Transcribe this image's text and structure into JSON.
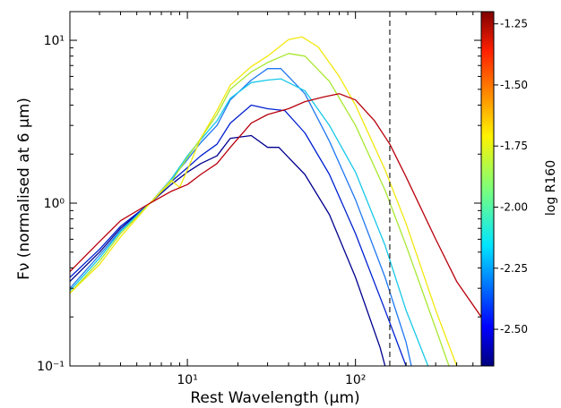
{
  "chart_data": {
    "type": "line",
    "title": "",
    "xlabel": "Rest Wavelength (μm)",
    "ylabel": "Fν (normalised at 6 μm)",
    "xscale": "log",
    "yscale": "log",
    "xlim": [
      2,
      560
    ],
    "ylim": [
      0.1,
      15
    ],
    "x_tick_labels": [
      {
        "value": 10,
        "label": "10¹"
      },
      {
        "value": 100,
        "label": "10²"
      }
    ],
    "y_tick_labels": [
      {
        "value": 0.1,
        "label": "10⁻¹"
      },
      {
        "value": 1,
        "label": "10⁰"
      },
      {
        "value": 10,
        "label": "10¹"
      }
    ],
    "vline": {
      "x": 160,
      "style": "dashed",
      "color": "#333333"
    },
    "colorbar": {
      "label": "log R160",
      "min": -2.65,
      "max": -1.2,
      "ticks": [
        "-1.25",
        "-1.50",
        "-1.75",
        "-2.00",
        "-2.25",
        "-2.50"
      ],
      "tick_values": [
        -1.25,
        -1.5,
        -1.75,
        -2.0,
        -2.25,
        -2.5
      ]
    },
    "series": [
      {
        "color": "#00008f",
        "points": [
          [
            2,
            0.33
          ],
          [
            3,
            0.5
          ],
          [
            4,
            0.7
          ],
          [
            6,
            1.0
          ],
          [
            8,
            1.3
          ],
          [
            10,
            1.55
          ],
          [
            12,
            1.75
          ],
          [
            15,
            1.95
          ],
          [
            18,
            2.5
          ],
          [
            24,
            2.6
          ],
          [
            30,
            2.2
          ],
          [
            35,
            2.2
          ],
          [
            50,
            1.5
          ],
          [
            70,
            0.85
          ],
          [
            100,
            0.35
          ],
          [
            140,
            0.13
          ],
          [
            150,
            0.1
          ]
        ]
      },
      {
        "color": "#0020d0",
        "points": [
          [
            2,
            0.35
          ],
          [
            3,
            0.52
          ],
          [
            4,
            0.72
          ],
          [
            6,
            1.0
          ],
          [
            8,
            1.35
          ],
          [
            10,
            1.65
          ],
          [
            12,
            1.95
          ],
          [
            15,
            2.3
          ],
          [
            18,
            3.1
          ],
          [
            24,
            4.0
          ],
          [
            30,
            3.8
          ],
          [
            38,
            3.7
          ],
          [
            50,
            2.7
          ],
          [
            70,
            1.5
          ],
          [
            100,
            0.65
          ],
          [
            150,
            0.22
          ],
          [
            200,
            0.1
          ]
        ]
      },
      {
        "color": "#1f77f0",
        "points": [
          [
            2,
            0.3
          ],
          [
            3,
            0.48
          ],
          [
            4,
            0.68
          ],
          [
            6,
            1.0
          ],
          [
            8,
            1.4
          ],
          [
            10,
            1.85
          ],
          [
            12,
            2.35
          ],
          [
            15,
            3.0
          ],
          [
            18,
            4.3
          ],
          [
            24,
            5.7
          ],
          [
            30,
            6.7
          ],
          [
            36,
            6.7
          ],
          [
            50,
            4.7
          ],
          [
            70,
            2.4
          ],
          [
            100,
            1.05
          ],
          [
            150,
            0.35
          ],
          [
            200,
            0.14
          ],
          [
            215,
            0.1
          ]
        ]
      },
      {
        "color": "#16c8e8",
        "points": [
          [
            2,
            0.29
          ],
          [
            3,
            0.46
          ],
          [
            4,
            0.67
          ],
          [
            6,
            1.0
          ],
          [
            8,
            1.4
          ],
          [
            10,
            1.95
          ],
          [
            12,
            2.45
          ],
          [
            15,
            3.2
          ],
          [
            18,
            4.4
          ],
          [
            24,
            5.5
          ],
          [
            30,
            5.7
          ],
          [
            36,
            5.8
          ],
          [
            50,
            4.9
          ],
          [
            70,
            3.0
          ],
          [
            100,
            1.55
          ],
          [
            150,
            0.55
          ],
          [
            200,
            0.22
          ],
          [
            270,
            0.1
          ]
        ]
      },
      {
        "color": "#a8e830",
        "points": [
          [
            2,
            0.28
          ],
          [
            3,
            0.44
          ],
          [
            4,
            0.65
          ],
          [
            6,
            1.0
          ],
          [
            8,
            1.35
          ],
          [
            10,
            1.9
          ],
          [
            12,
            2.5
          ],
          [
            15,
            3.5
          ],
          [
            18,
            5.0
          ],
          [
            24,
            6.4
          ],
          [
            30,
            7.3
          ],
          [
            40,
            8.3
          ],
          [
            50,
            8.0
          ],
          [
            70,
            5.6
          ],
          [
            100,
            3.0
          ],
          [
            150,
            1.2
          ],
          [
            200,
            0.55
          ],
          [
            300,
            0.17
          ],
          [
            360,
            0.1
          ]
        ]
      },
      {
        "color": "#f2e80d",
        "points": [
          [
            2,
            0.28
          ],
          [
            3,
            0.42
          ],
          [
            4,
            0.62
          ],
          [
            6,
            1.0
          ],
          [
            8,
            1.38
          ],
          [
            9,
            1.25
          ],
          [
            10,
            1.6
          ],
          [
            12,
            2.5
          ],
          [
            15,
            3.7
          ],
          [
            18,
            5.3
          ],
          [
            24,
            6.9
          ],
          [
            30,
            8.0
          ],
          [
            40,
            10.1
          ],
          [
            48,
            10.5
          ],
          [
            60,
            9.1
          ],
          [
            80,
            6.0
          ],
          [
            100,
            4.0
          ],
          [
            150,
            1.6
          ],
          [
            200,
            0.75
          ],
          [
            300,
            0.22
          ],
          [
            400,
            0.1
          ]
        ]
      },
      {
        "color": "#b8000c",
        "points": [
          [
            2,
            0.38
          ],
          [
            3,
            0.58
          ],
          [
            4,
            0.78
          ],
          [
            6,
            1.0
          ],
          [
            8,
            1.18
          ],
          [
            10,
            1.3
          ],
          [
            12,
            1.5
          ],
          [
            15,
            1.75
          ],
          [
            18,
            2.2
          ],
          [
            24,
            3.1
          ],
          [
            30,
            3.5
          ],
          [
            40,
            3.8
          ],
          [
            50,
            4.2
          ],
          [
            65,
            4.5
          ],
          [
            80,
            4.7
          ],
          [
            100,
            4.3
          ],
          [
            130,
            3.2
          ],
          [
            160,
            2.3
          ],
          [
            200,
            1.45
          ],
          [
            300,
            0.6
          ],
          [
            400,
            0.33
          ],
          [
            560,
            0.2
          ]
        ]
      }
    ]
  }
}
